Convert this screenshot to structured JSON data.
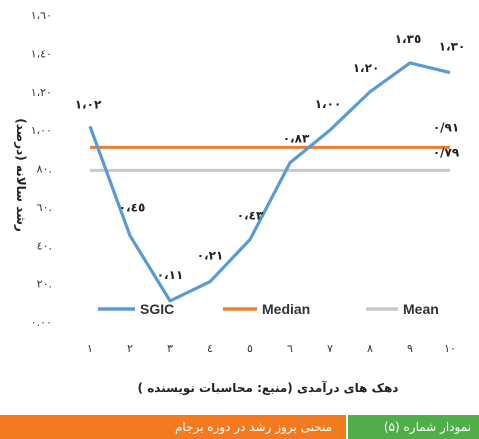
{
  "chart_data": {
    "type": "line",
    "x": [
      1,
      2,
      3,
      4,
      5,
      6,
      7,
      8,
      9,
      10
    ],
    "x_tick_labels": [
      "١",
      "٢",
      "٣",
      "٤",
      "٥",
      "٦",
      "٧",
      "٨",
      "٩",
      "١٠"
    ],
    "xlabel": "دهک های درآمدی (منبع: محاسبات نویسنده )",
    "ylabel": "رشد سالانه (درصد)",
    "ylim": [
      0,
      1.6
    ],
    "y_ticks": [
      0,
      0.2,
      0.4,
      0.6,
      0.8,
      1.0,
      1.2,
      1.4,
      1.6
    ],
    "y_tick_labels": [
      "٠.٠٠",
      "٢٠.",
      "٤٠.",
      "٦٠.",
      "٨٠.",
      "١،٠٠",
      "١،٢٠",
      "١،٤٠",
      "١،٦٠"
    ],
    "grid": false,
    "legend_position": "bottom-inside",
    "series": [
      {
        "name": "SGIC",
        "color": "#5B9BD5",
        "values": [
          1.02,
          0.45,
          0.11,
          0.21,
          0.43,
          0.83,
          1.0,
          1.2,
          1.35,
          1.3
        ],
        "data_labels": [
          {
            "index": 0,
            "text": "١،٠٢"
          },
          {
            "index": 1,
            "text": "٠،٤٥"
          },
          {
            "index": 2,
            "text": "٠،١١"
          },
          {
            "index": 3,
            "text": "٠،٢١"
          },
          {
            "index": 4,
            "text": "٠،٤٣"
          },
          {
            "index": 5,
            "text": "٠،٨٣"
          },
          {
            "index": 6,
            "text": "١،٠٠"
          },
          {
            "index": 7,
            "text": "١،٢٠"
          },
          {
            "index": 8,
            "text": "١،٣٥"
          },
          {
            "index": 9,
            "text": "١،٣٠"
          }
        ]
      },
      {
        "name": "Median",
        "color": "#ED7D31",
        "values": [
          0.91,
          0.91,
          0.91,
          0.91,
          0.91,
          0.91,
          0.91,
          0.91,
          0.91,
          0.91
        ],
        "data_labels": [
          {
            "index": 9,
            "text": "٠/٩١"
          }
        ]
      },
      {
        "name": "Mean",
        "color": "#C9C9C9",
        "values": [
          0.79,
          0.79,
          0.79,
          0.79,
          0.79,
          0.79,
          0.79,
          0.79,
          0.79,
          0.79
        ],
        "data_labels": [
          {
            "index": 9,
            "text": "٠/٧٩"
          }
        ]
      }
    ]
  },
  "footer": {
    "figure_number": "نمودار شماره (۵)",
    "figure_title": "منحنی بروز رشد در دوره برجام",
    "left_color": "#F47A20",
    "right_color": "#4FAE48"
  }
}
